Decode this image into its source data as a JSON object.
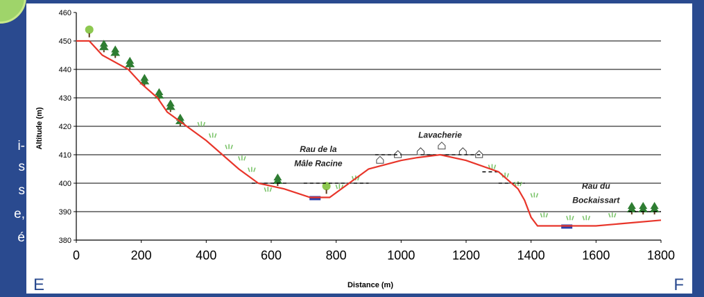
{
  "side_text": [
    "i-",
    "s",
    "s",
    "e,",
    "é"
  ],
  "chart_data": {
    "type": "line",
    "xlabel": "Distance (m)",
    "ylabel": "Altitude (m)",
    "xlim": [
      0,
      1800
    ],
    "ylim": [
      380,
      460
    ],
    "x_ticks": [
      "0",
      "200",
      "400",
      "600",
      "800",
      "1000",
      "1200",
      "1400",
      "1600",
      "1800"
    ],
    "y_ticks": [
      "380",
      "390",
      "400",
      "410",
      "420",
      "430",
      "440",
      "450",
      "460"
    ],
    "gridlines_y": [
      390,
      400,
      410,
      420,
      430,
      440,
      450
    ],
    "profile": {
      "x": [
        0,
        40,
        80,
        160,
        200,
        250,
        280,
        340,
        400,
        500,
        560,
        640,
        720,
        780,
        840,
        900,
        1000,
        1050,
        1120,
        1200,
        1300,
        1360,
        1380,
        1400,
        1420,
        1500,
        1600,
        1700,
        1800
      ],
      "y": [
        450,
        450,
        445,
        440,
        435,
        430,
        425,
        420,
        415,
        405,
        400,
        398,
        395,
        395,
        400,
        405,
        408,
        409,
        410,
        408,
        404,
        398,
        394,
        388,
        385,
        385,
        385,
        386,
        387
      ],
      "color": "#e8352a"
    },
    "annotations": [
      {
        "label": "Rau de la",
        "x": 745,
        "y": 411
      },
      {
        "label": "Mâle Racine",
        "x": 745,
        "y": 406
      },
      {
        "label": "Lavacherie",
        "x": 1120,
        "y": 416
      },
      {
        "label": "Rau du",
        "x": 1600,
        "y": 398
      },
      {
        "label": "Bockaissart",
        "x": 1600,
        "y": 393
      }
    ],
    "corner_labels": {
      "left": "E",
      "right": "F"
    },
    "colors": {
      "profile": "#e8352a",
      "grid": "#000000",
      "water": "#2c3fa8",
      "tree": "#2e7d32",
      "grass": "#7cc46b",
      "background": "#2a4a8f"
    }
  }
}
